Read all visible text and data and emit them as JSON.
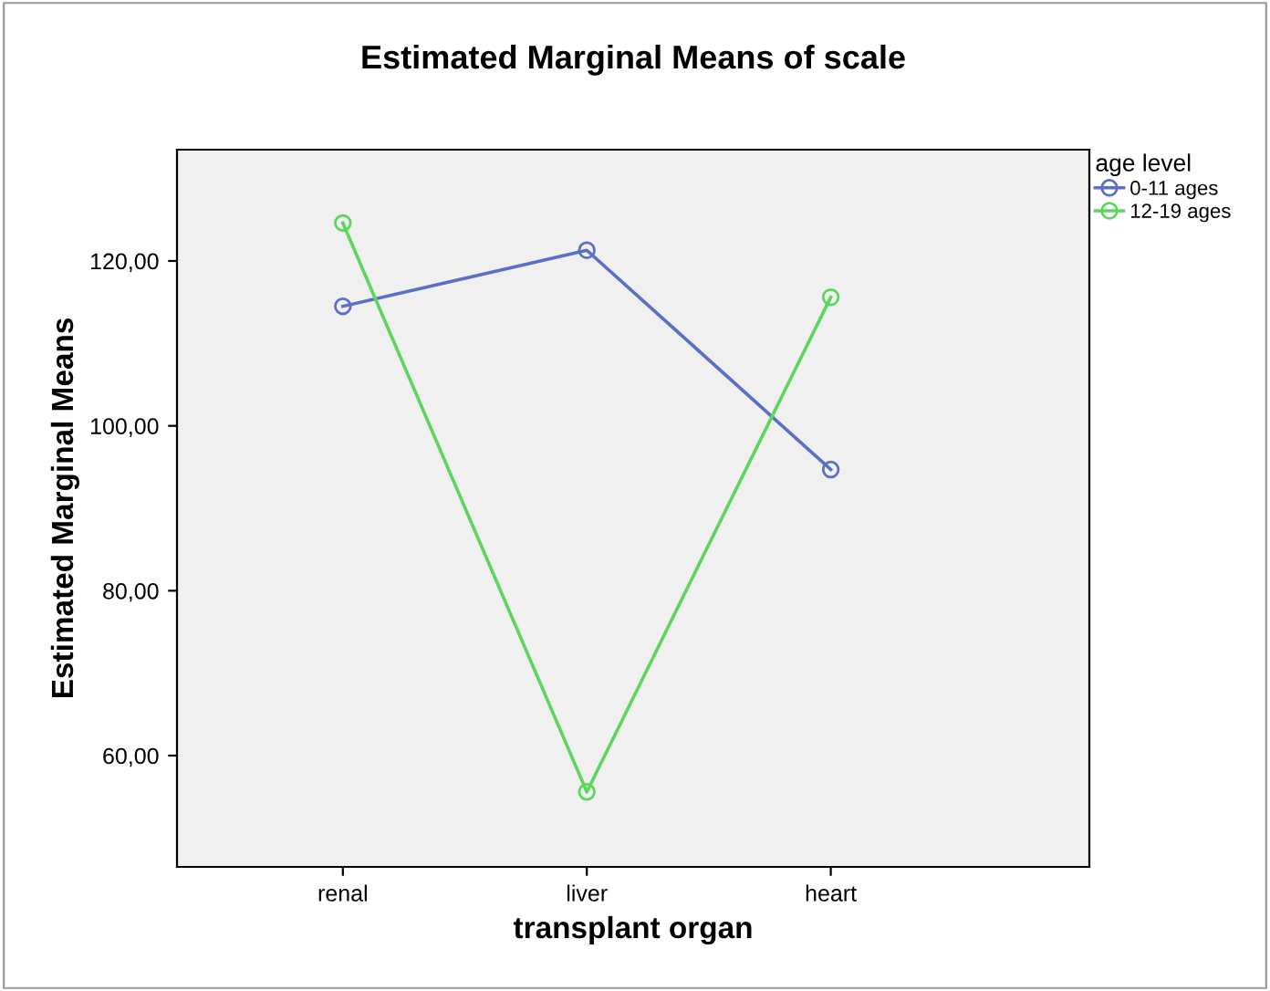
{
  "chart_data": {
    "type": "line",
    "title": "Estimated Marginal Means of scale",
    "xlabel": "transplant organ",
    "ylabel": "Estimated Marginal Means",
    "legend_title": "age level",
    "categories": [
      "renal",
      "liver",
      "heart"
    ],
    "series": [
      {
        "name": "0-11 ages",
        "color": "#5b6fc8",
        "values": [
          114.5,
          121.3,
          94.7
        ]
      },
      {
        "name": "12-19 ages",
        "color": "#5cd65c",
        "values": [
          124.6,
          55.6,
          115.6
        ]
      }
    ],
    "ylim": [
      46.5,
      133.5
    ],
    "yticks": [
      {
        "value": 60,
        "label": "60,00"
      },
      {
        "value": 80,
        "label": "80,00"
      },
      {
        "value": 100,
        "label": "100,00"
      },
      {
        "value": 120,
        "label": "120,00"
      }
    ],
    "grid": false,
    "legend": "top right",
    "marker": "circle",
    "line_style": "solid"
  }
}
